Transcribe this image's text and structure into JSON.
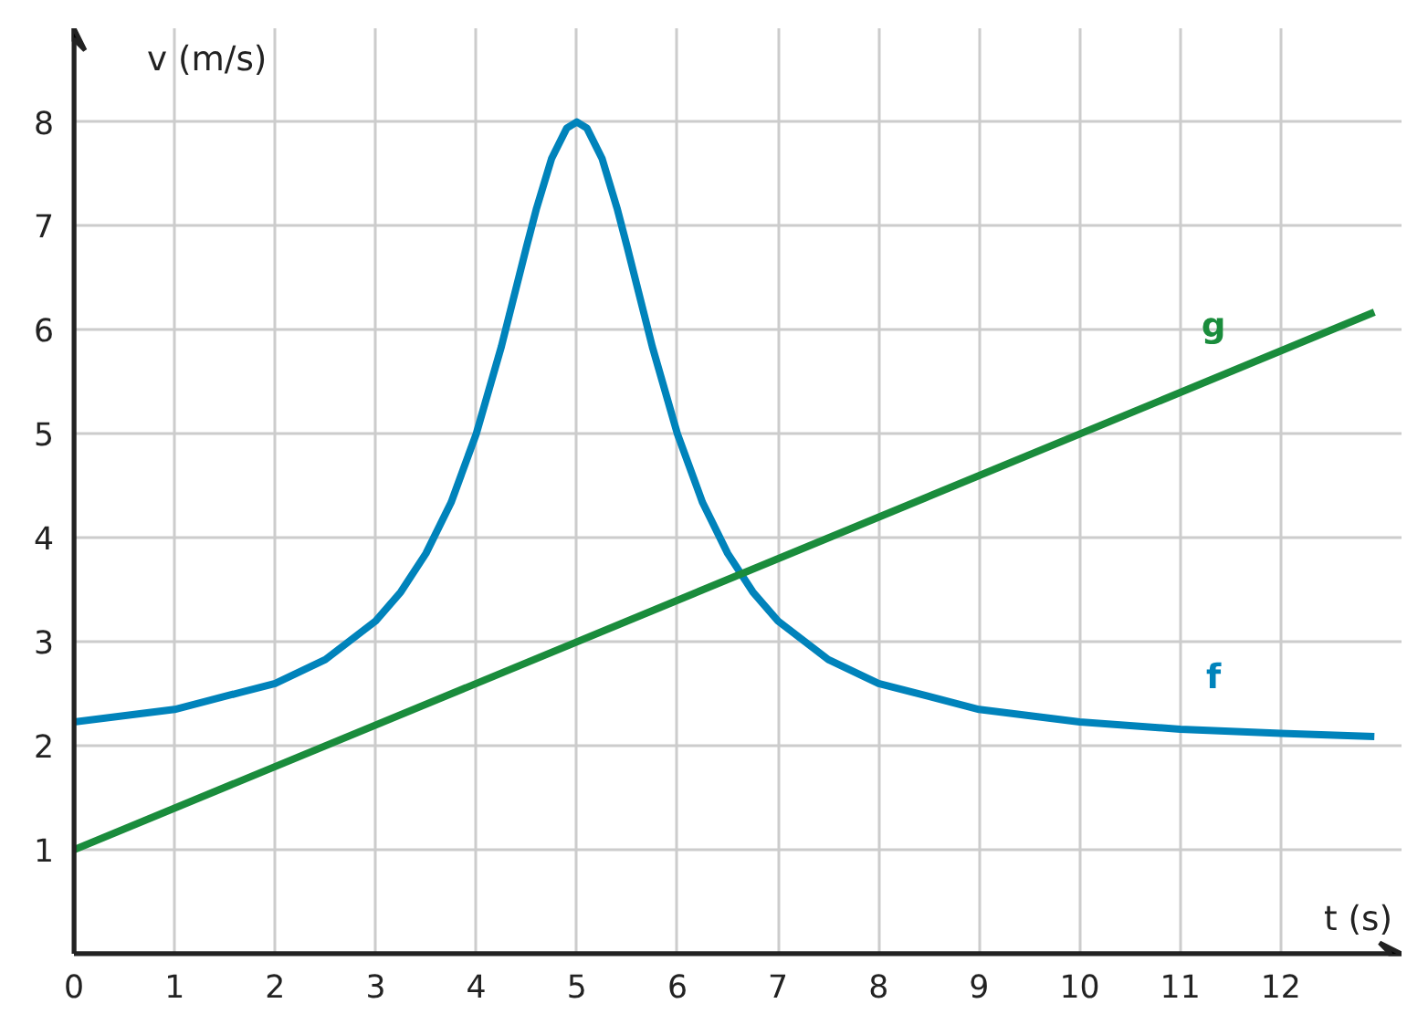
{
  "chart_data": {
    "type": "line",
    "xlabel": "t (s)",
    "ylabel": "v (m/s)",
    "xlim": [
      0,
      13.2
    ],
    "ylim": [
      0,
      8.9
    ],
    "xticks": [
      0,
      1,
      2,
      3,
      4,
      5,
      6,
      7,
      8,
      9,
      10,
      11,
      12
    ],
    "yticks": [
      1,
      2,
      3,
      4,
      5,
      6,
      7,
      8
    ],
    "grid": true,
    "marker": "none",
    "line_style": "solid",
    "series": [
      {
        "name": "f",
        "color": "#0083bb",
        "x": [
          0,
          1,
          2,
          2.5,
          3,
          3.25,
          3.5,
          3.75,
          4,
          4.25,
          4.5,
          4.6,
          4.75,
          4.9,
          5,
          5.1,
          5.25,
          5.4,
          5.5,
          5.75,
          6,
          6.25,
          6.5,
          6.75,
          7,
          7.5,
          8,
          9,
          10,
          11,
          12,
          12.93
        ],
        "values": [
          2.23,
          2.35,
          2.6,
          2.83,
          3.2,
          3.48,
          3.85,
          4.34,
          5,
          5.84,
          6.8,
          7.17,
          7.65,
          7.94,
          8,
          7.94,
          7.65,
          7.17,
          6.8,
          5.84,
          5,
          4.34,
          3.85,
          3.48,
          3.2,
          2.83,
          2.6,
          2.35,
          2.23,
          2.16,
          2.12,
          2.09
        ]
      },
      {
        "name": "g",
        "color": "#1a8c3c",
        "x": [
          0,
          12.93
        ],
        "values": [
          1,
          6.17
        ]
      }
    ]
  }
}
